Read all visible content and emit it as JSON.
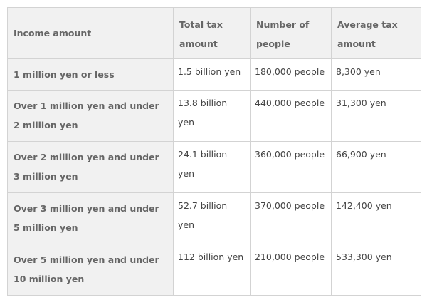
{
  "table": {
    "headers": [
      "Income amount",
      "Total tax amount",
      "Number of people",
      "Average tax amount"
    ],
    "rows": [
      [
        "1 million yen or less",
        "1.5 billion yen",
        "180,000 people",
        "8,300 yen"
      ],
      [
        "Over 1 million yen and under 2 million yen",
        "13.8 billion yen",
        "440,000 people",
        "31,300 yen"
      ],
      [
        "Over 2 million yen and under 3 million yen",
        "24.1 billion yen",
        "360,000 people",
        "66,900 yen"
      ],
      [
        "Over 3 million yen and under 5 million yen",
        "52.7 billion yen",
        "370,000 people",
        "142,400 yen"
      ],
      [
        "Over 5 million yen and under 10 million yen",
        "112 billion yen",
        "210,000 people",
        "533,300 yen"
      ]
    ]
  },
  "colors": {
    "header_bg": "#f1f1f1",
    "border": "#d3d3d3",
    "text": "#555555"
  }
}
